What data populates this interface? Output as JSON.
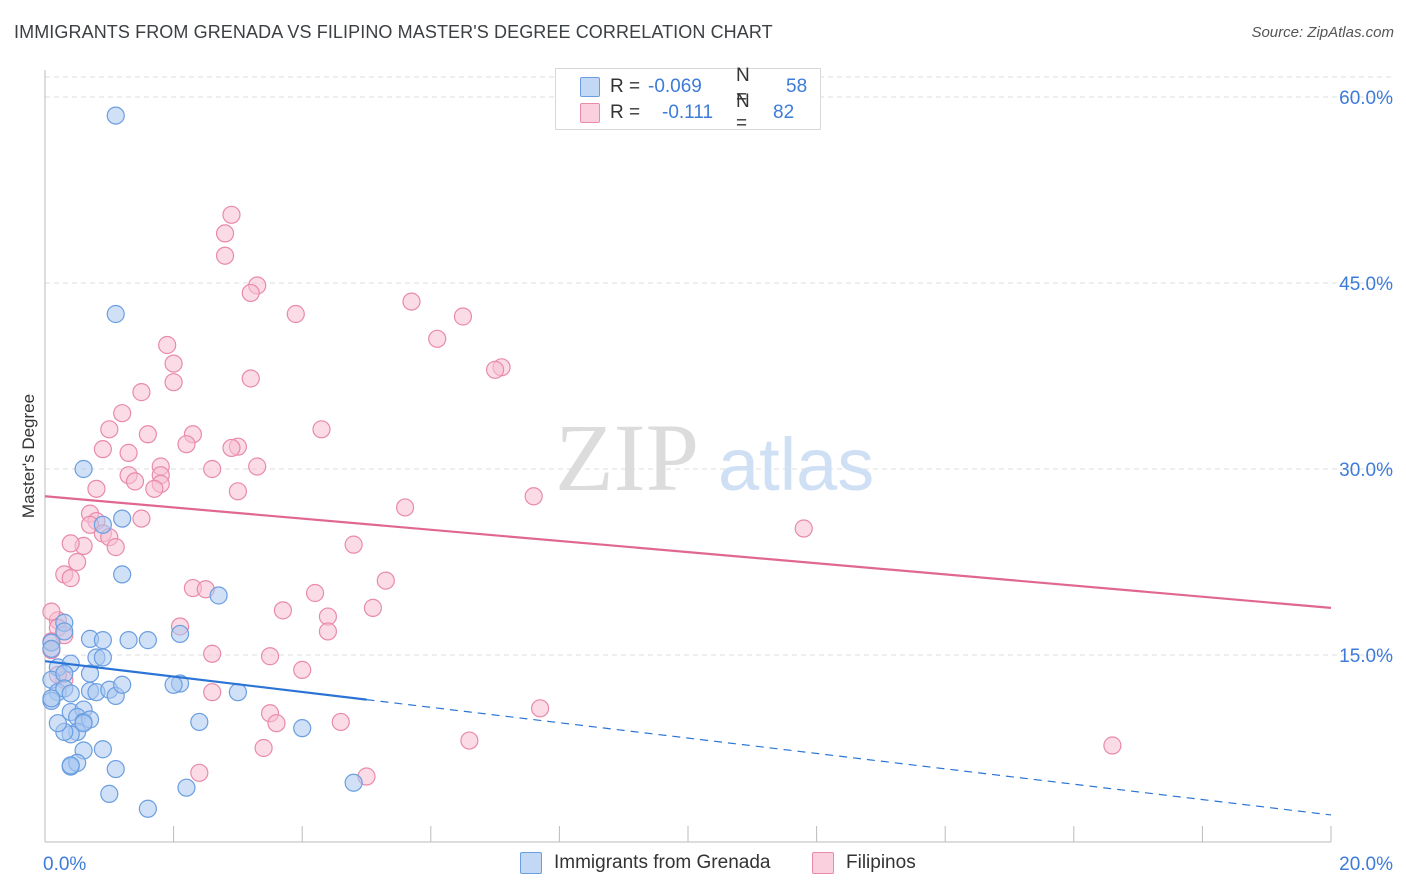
{
  "title": "IMMIGRANTS FROM GRENADA VS FILIPINO MASTER'S DEGREE CORRELATION CHART",
  "source": "Source: ZipAtlas.com",
  "watermark": {
    "zip": "ZIP",
    "atlas": "atlas"
  },
  "legend_top": [
    {
      "r_label": "R =",
      "r_value": "-0.069",
      "n_label": "N =",
      "n_value": "58"
    },
    {
      "r_label": "R =",
      "r_value": "-0.111",
      "n_label": "N =",
      "n_value": "82"
    }
  ],
  "legend_bottom": [
    "Immigrants from Grenada",
    "Filipinos"
  ],
  "colors": {
    "blue_fill": "#a9c8f0",
    "blue_stroke": "#6a9ee0",
    "blue_line": "#2b74d6",
    "pink_fill": "#f7bfd1",
    "pink_stroke": "#e98aa9",
    "pink_line": "#e0678f",
    "tick_label": "#3d7bd9",
    "grid": "#dcdcdc"
  },
  "chart_data": {
    "type": "scatter",
    "xlabel": "",
    "ylabel": "Master's Degree",
    "xlim": [
      0,
      20
    ],
    "ylim": [
      0,
      60
    ],
    "x_tick_labels": [
      "0.0%",
      "20.0%"
    ],
    "y_tick_labels": [
      "15.0%",
      "30.0%",
      "45.0%",
      "60.0%"
    ],
    "y_ticks": [
      15,
      30,
      45,
      60
    ],
    "legend_position": "top-center",
    "grid": true,
    "series": [
      {
        "name": "Immigrants from Grenada",
        "color": "blue",
        "points": [
          [
            1.1,
            58.5
          ],
          [
            1.1,
            42.5
          ],
          [
            0.6,
            30
          ],
          [
            1.2,
            26
          ],
          [
            0.9,
            25.5
          ],
          [
            1.2,
            21.5
          ],
          [
            2.7,
            19.8
          ],
          [
            0.1,
            16
          ],
          [
            0.1,
            15.5
          ],
          [
            0.3,
            17.6
          ],
          [
            0.3,
            16.9
          ],
          [
            0.2,
            14
          ],
          [
            0.4,
            14.3
          ],
          [
            0.1,
            13
          ],
          [
            0.3,
            13.5
          ],
          [
            0.2,
            12
          ],
          [
            0.3,
            12.3
          ],
          [
            0.4,
            11.9
          ],
          [
            0.1,
            11.3
          ],
          [
            0.4,
            10.4
          ],
          [
            0.6,
            10.6
          ],
          [
            0.7,
            16.3
          ],
          [
            0.9,
            16.2
          ],
          [
            0.8,
            14.8
          ],
          [
            0.9,
            14.8
          ],
          [
            0.7,
            13.5
          ],
          [
            0.7,
            12.1
          ],
          [
            0.8,
            12
          ],
          [
            1,
            12.2
          ],
          [
            1.1,
            11.7
          ],
          [
            1.2,
            12.6
          ],
          [
            1.3,
            16.2
          ],
          [
            1.6,
            16.2
          ],
          [
            2.1,
            16.7
          ],
          [
            2.1,
            12.7
          ],
          [
            2,
            12.6
          ],
          [
            3,
            12
          ],
          [
            0.5,
            10
          ],
          [
            0.6,
            9.6
          ],
          [
            0.7,
            9.8
          ],
          [
            0.5,
            8.8
          ],
          [
            0.4,
            8.6
          ],
          [
            0.3,
            8.8
          ],
          [
            0.9,
            7.4
          ],
          [
            0.6,
            7.3
          ],
          [
            0.4,
            6
          ],
          [
            0.5,
            6.3
          ],
          [
            0.4,
            6.1
          ],
          [
            1.1,
            5.8
          ],
          [
            1,
            3.8
          ],
          [
            1.6,
            2.6
          ],
          [
            2.2,
            4.3
          ],
          [
            2.4,
            9.6
          ],
          [
            4,
            9.1
          ],
          [
            4.8,
            4.7
          ],
          [
            0.1,
            11.5
          ],
          [
            0.2,
            9.5
          ],
          [
            0.6,
            9.5
          ]
        ]
      },
      {
        "name": "Filipinos",
        "color": "pink",
        "points": [
          [
            2.9,
            50.5
          ],
          [
            2.8,
            49
          ],
          [
            2.8,
            47.2
          ],
          [
            3.3,
            44.8
          ],
          [
            3.2,
            44.2
          ],
          [
            3.9,
            42.5
          ],
          [
            5.7,
            43.5
          ],
          [
            6.5,
            42.3
          ],
          [
            6.1,
            40.5
          ],
          [
            1.9,
            40
          ],
          [
            2,
            38.5
          ],
          [
            7.1,
            38.2
          ],
          [
            7,
            38
          ],
          [
            2,
            37
          ],
          [
            3.2,
            37.3
          ],
          [
            1.5,
            36.2
          ],
          [
            1.2,
            34.5
          ],
          [
            2.3,
            32.8
          ],
          [
            1,
            33.2
          ],
          [
            1.6,
            32.8
          ],
          [
            4.3,
            33.2
          ],
          [
            2.2,
            32
          ],
          [
            3,
            31.8
          ],
          [
            2.9,
            31.7
          ],
          [
            0.9,
            31.6
          ],
          [
            1.3,
            31.3
          ],
          [
            1.8,
            30.2
          ],
          [
            2.6,
            30
          ],
          [
            3.3,
            30.2
          ],
          [
            1.8,
            29.5
          ],
          [
            1.3,
            29.5
          ],
          [
            1.4,
            29
          ],
          [
            1.8,
            28.8
          ],
          [
            1.7,
            28.4
          ],
          [
            3,
            28.2
          ],
          [
            0.8,
            28.4
          ],
          [
            7.6,
            27.8
          ],
          [
            5.6,
            26.9
          ],
          [
            0.7,
            26.4
          ],
          [
            0.8,
            25.8
          ],
          [
            0.7,
            25.5
          ],
          [
            1.5,
            26
          ],
          [
            0.9,
            24.8
          ],
          [
            1,
            24.5
          ],
          [
            1.1,
            23.7
          ],
          [
            0.6,
            23.8
          ],
          [
            0.4,
            24
          ],
          [
            4.8,
            23.9
          ],
          [
            11.8,
            25.2
          ],
          [
            0.5,
            22.5
          ],
          [
            0.3,
            21.5
          ],
          [
            0.4,
            21.2
          ],
          [
            5.3,
            21
          ],
          [
            2.3,
            20.4
          ],
          [
            2.5,
            20.3
          ],
          [
            4.2,
            20
          ],
          [
            5.1,
            18.8
          ],
          [
            3.7,
            18.6
          ],
          [
            4.4,
            18.1
          ],
          [
            0.2,
            17.8
          ],
          [
            0.2,
            17.2
          ],
          [
            0.1,
            18.5
          ],
          [
            0.1,
            16.1
          ],
          [
            4.4,
            16.9
          ],
          [
            2.1,
            17.3
          ],
          [
            2.6,
            15.1
          ],
          [
            3.5,
            14.9
          ],
          [
            4,
            13.8
          ],
          [
            0.3,
            13
          ],
          [
            2.6,
            12
          ],
          [
            3.5,
            10.3
          ],
          [
            3.6,
            9.5
          ],
          [
            4.6,
            9.6
          ],
          [
            7.7,
            10.7
          ],
          [
            3.4,
            7.5
          ],
          [
            6.6,
            8.1
          ],
          [
            2.4,
            5.5
          ],
          [
            5,
            5.2
          ],
          [
            16.6,
            7.7
          ],
          [
            0.2,
            13.4
          ],
          [
            0.3,
            16.6
          ],
          [
            0.1,
            15.4
          ]
        ]
      }
    ],
    "trend_lines": [
      {
        "series": "Immigrants from Grenada",
        "x": [
          0,
          5
        ],
        "y": [
          14.5,
          11.4
        ],
        "dashed_extension_to": [
          20,
          2.1
        ]
      },
      {
        "series": "Filipinos",
        "x": [
          0,
          20
        ],
        "y": [
          27.8,
          18.8
        ]
      }
    ]
  }
}
